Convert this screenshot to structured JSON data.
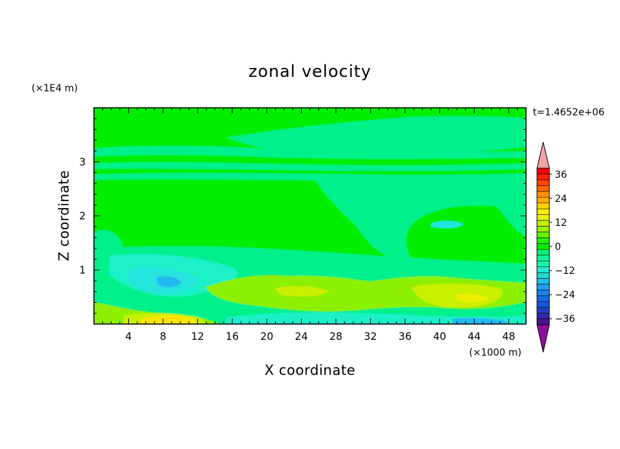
{
  "chart_data": {
    "type": "heatmap",
    "title": "zonal velocity",
    "xlabel": "X coordinate",
    "ylabel": "Z coordinate",
    "x_unit": "(×1000 m)",
    "y_unit": "(×1E4 m)",
    "time_label": "t=1.4652e+06",
    "xlim": [
      0,
      50
    ],
    "ylim": [
      0,
      4
    ],
    "x_ticks": [
      4,
      8,
      12,
      16,
      20,
      24,
      28,
      32,
      36,
      40,
      44,
      48
    ],
    "y_ticks": [
      1,
      2,
      3
    ],
    "colorbar": {
      "levels": [
        -42,
        -39,
        -36,
        -33,
        -30,
        -27,
        -24,
        -21,
        -18,
        -15,
        -12,
        -9,
        -6,
        -3,
        0,
        3,
        6,
        9,
        12,
        15,
        18,
        21,
        24,
        27,
        30,
        33,
        36,
        39,
        42
      ],
      "tick_labels": [
        "36",
        "24",
        "12",
        "0",
        "−12",
        "−24",
        "−36"
      ],
      "tick_values": [
        36,
        24,
        12,
        0,
        -12,
        -24,
        -36
      ],
      "colors": [
        "#8e0f9e",
        "#4a148f",
        "#2a2aa6",
        "#1f3fc0",
        "#1a54d8",
        "#1769e8",
        "#1a82f0",
        "#1fa0f2",
        "#22bfe8",
        "#26d9d4",
        "#22eecf",
        "#1cf7b0",
        "#12f59a",
        "#08f470",
        "#00ee00",
        "#22f200",
        "#60f200",
        "#9cf000",
        "#c8f000",
        "#ecf200",
        "#ffee00",
        "#ffd000",
        "#ffb000",
        "#ff9000",
        "#ff6a00",
        "#ff4400",
        "#ff2200",
        "#ff0000",
        "#f2a5a5"
      ],
      "over_color": "#f2a5a5",
      "under_color": "#8e0f9e"
    },
    "bands": [
      {
        "value": 0,
        "color": "#00ee00",
        "description": "background"
      },
      {
        "value": -3,
        "color": "#00f08c"
      },
      {
        "value": -7,
        "color": "#1ef0c8"
      },
      {
        "value": -10,
        "color": "#28e4de"
      },
      {
        "value": -14,
        "color": "#22b8f0"
      },
      {
        "value": 4,
        "color": "#8cf000"
      },
      {
        "value": 10,
        "color": "#c8f000"
      },
      {
        "value": 16,
        "color": "#ecf000"
      },
      {
        "value": 20,
        "color": "#ffe400"
      }
    ]
  }
}
